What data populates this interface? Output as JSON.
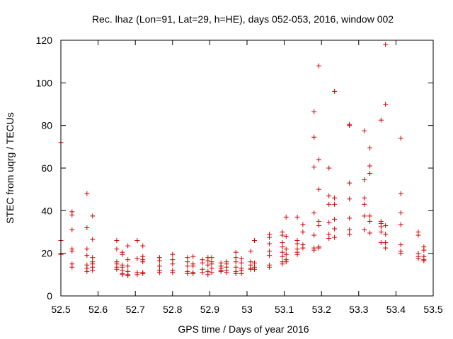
{
  "chart_data": {
    "type": "scatter",
    "title": "Rec. lhaz (Lon=91, Lat=29, h=HE), days 052-053, 2016, window 002",
    "xlabel": "GPS time / Days of year 2016",
    "ylabel": "STEC from uqrg / TECUs",
    "xlim": [
      52.5,
      53.5
    ],
    "ylim": [
      0,
      120
    ],
    "x_ticks": [
      "52.5",
      "52.6",
      "52.7",
      "52.8",
      "52.9",
      "53",
      "53.1",
      "53.2",
      "53.3",
      "53.4",
      "53.5"
    ],
    "y_ticks": [
      "0",
      "20",
      "40",
      "60",
      "80",
      "100",
      "120"
    ],
    "x_tick_values": [
      52.5,
      52.6,
      52.7,
      52.8,
      52.9,
      53.0,
      53.1,
      53.2,
      53.3,
      53.4,
      53.5
    ],
    "y_tick_values": [
      0,
      20,
      40,
      60,
      80,
      100,
      120
    ],
    "grid": false,
    "marker": "plus",
    "marker_color": "#d00000",
    "series": [
      {
        "points": [
          [
            52.5,
            72
          ],
          [
            52.5,
            26
          ],
          [
            52.5,
            20
          ],
          [
            52.5,
            19.5
          ],
          [
            52.53,
            39.5
          ],
          [
            52.53,
            38
          ],
          [
            52.53,
            31
          ],
          [
            52.53,
            22
          ],
          [
            52.53,
            21
          ],
          [
            52.53,
            15
          ],
          [
            52.53,
            13.5
          ],
          [
            52.57,
            48
          ],
          [
            52.57,
            32
          ],
          [
            52.57,
            22
          ],
          [
            52.57,
            19
          ],
          [
            52.57,
            14.5
          ],
          [
            52.57,
            13
          ],
          [
            52.57,
            11.5
          ],
          [
            52.585,
            37.5
          ],
          [
            52.585,
            26.5
          ],
          [
            52.585,
            18
          ],
          [
            52.585,
            16
          ],
          [
            52.585,
            15
          ],
          [
            52.585,
            13.5
          ],
          [
            52.585,
            12
          ],
          [
            52.65,
            26
          ],
          [
            52.65,
            22
          ],
          [
            52.65,
            16
          ],
          [
            52.65,
            15
          ],
          [
            52.65,
            13.5
          ],
          [
            52.65,
            12.5
          ],
          [
            52.665,
            20.5
          ],
          [
            52.665,
            19.5
          ],
          [
            52.665,
            14.5
          ],
          [
            52.665,
            13.5
          ],
          [
            52.665,
            12
          ],
          [
            52.665,
            10.5
          ],
          [
            52.665,
            10
          ],
          [
            52.68,
            23.5
          ],
          [
            52.68,
            17
          ],
          [
            52.68,
            14
          ],
          [
            52.68,
            11.5
          ],
          [
            52.68,
            10
          ],
          [
            52.68,
            9.5
          ],
          [
            52.705,
            26
          ],
          [
            52.705,
            17.5
          ],
          [
            52.705,
            11
          ],
          [
            52.705,
            10
          ],
          [
            52.72,
            23.5
          ],
          [
            52.72,
            18.5
          ],
          [
            52.72,
            17
          ],
          [
            52.72,
            16
          ],
          [
            52.72,
            11
          ],
          [
            52.72,
            10.5
          ],
          [
            52.765,
            18
          ],
          [
            52.765,
            16.5
          ],
          [
            52.765,
            14
          ],
          [
            52.765,
            12
          ],
          [
            52.765,
            11
          ],
          [
            52.8,
            19.5
          ],
          [
            52.8,
            17
          ],
          [
            52.8,
            15
          ],
          [
            52.8,
            12
          ],
          [
            52.8,
            11
          ],
          [
            52.84,
            18
          ],
          [
            52.84,
            16
          ],
          [
            52.84,
            14
          ],
          [
            52.84,
            11.5
          ],
          [
            52.84,
            10.5
          ],
          [
            52.855,
            18.5
          ],
          [
            52.855,
            15
          ],
          [
            52.855,
            14
          ],
          [
            52.855,
            11
          ],
          [
            52.855,
            10.5
          ],
          [
            52.88,
            17
          ],
          [
            52.88,
            15.5
          ],
          [
            52.88,
            12.5
          ],
          [
            52.88,
            11
          ],
          [
            52.895,
            18
          ],
          [
            52.895,
            16.5
          ],
          [
            52.895,
            14.5
          ],
          [
            52.895,
            11.5
          ],
          [
            52.895,
            10
          ],
          [
            52.905,
            18
          ],
          [
            52.905,
            16
          ],
          [
            52.905,
            15
          ],
          [
            52.905,
            13
          ],
          [
            52.905,
            11
          ],
          [
            52.93,
            15.5
          ],
          [
            52.93,
            14
          ],
          [
            52.93,
            13
          ],
          [
            52.93,
            12
          ],
          [
            52.93,
            11.5
          ],
          [
            52.945,
            16
          ],
          [
            52.945,
            15
          ],
          [
            52.945,
            13.5
          ],
          [
            52.945,
            12
          ],
          [
            52.945,
            11
          ],
          [
            52.97,
            20.5
          ],
          [
            52.97,
            18
          ],
          [
            52.97,
            16
          ],
          [
            52.97,
            13.5
          ],
          [
            52.97,
            11.5
          ],
          [
            52.97,
            10.5
          ],
          [
            52.985,
            17.5
          ],
          [
            52.985,
            15.5
          ],
          [
            52.985,
            13
          ],
          [
            52.985,
            12
          ],
          [
            52.985,
            10.5
          ],
          [
            53.01,
            21
          ],
          [
            53.01,
            16
          ],
          [
            53.01,
            14.5
          ],
          [
            53.01,
            13
          ],
          [
            53.01,
            12.5
          ],
          [
            53.02,
            26
          ],
          [
            53.02,
            15.5
          ],
          [
            53.02,
            13.5
          ],
          [
            53.02,
            12.5
          ],
          [
            53.06,
            29
          ],
          [
            53.06,
            27.5
          ],
          [
            53.06,
            24.5
          ],
          [
            53.06,
            21
          ],
          [
            53.06,
            19
          ],
          [
            53.06,
            14.5
          ],
          [
            53.06,
            13.5
          ],
          [
            53.095,
            30
          ],
          [
            53.095,
            28.5
          ],
          [
            53.095,
            25
          ],
          [
            53.095,
            23
          ],
          [
            53.095,
            20.5
          ],
          [
            53.095,
            18.5
          ],
          [
            53.095,
            16
          ],
          [
            53.095,
            15
          ],
          [
            53.105,
            37
          ],
          [
            53.105,
            28
          ],
          [
            53.105,
            22
          ],
          [
            53.105,
            19.5
          ],
          [
            53.105,
            17
          ],
          [
            53.105,
            16
          ],
          [
            53.135,
            37
          ],
          [
            53.135,
            26
          ],
          [
            53.135,
            24.5
          ],
          [
            53.135,
            22
          ],
          [
            53.135,
            20.5
          ],
          [
            53.135,
            19.5
          ],
          [
            53.15,
            33.5
          ],
          [
            53.15,
            30
          ],
          [
            53.15,
            24
          ],
          [
            53.15,
            22.5
          ],
          [
            53.18,
            86.5
          ],
          [
            53.18,
            74.5
          ],
          [
            53.18,
            60.5
          ],
          [
            53.18,
            39
          ],
          [
            53.18,
            28.5
          ],
          [
            53.18,
            22.5
          ],
          [
            53.18,
            21.5
          ],
          [
            53.193,
            108
          ],
          [
            53.193,
            64
          ],
          [
            53.193,
            50
          ],
          [
            53.193,
            35
          ],
          [
            53.193,
            33
          ],
          [
            53.193,
            23
          ],
          [
            53.193,
            22.5
          ],
          [
            53.22,
            60
          ],
          [
            53.22,
            47
          ],
          [
            53.22,
            43
          ],
          [
            53.22,
            34.5
          ],
          [
            53.22,
            29
          ],
          [
            53.22,
            27
          ],
          [
            53.235,
            96
          ],
          [
            53.235,
            46
          ],
          [
            53.235,
            43
          ],
          [
            53.235,
            36
          ],
          [
            53.235,
            31.5
          ],
          [
            53.235,
            27.5
          ],
          [
            53.275,
            80.5
          ],
          [
            53.275,
            80
          ],
          [
            53.275,
            53
          ],
          [
            53.275,
            45.5
          ],
          [
            53.275,
            36.5
          ],
          [
            53.275,
            31
          ],
          [
            53.275,
            29
          ],
          [
            53.315,
            77.5
          ],
          [
            53.315,
            54.5
          ],
          [
            53.315,
            46
          ],
          [
            53.315,
            43
          ],
          [
            53.315,
            37.5
          ],
          [
            53.315,
            31
          ],
          [
            53.33,
            69.5
          ],
          [
            53.33,
            61
          ],
          [
            53.33,
            57.5
          ],
          [
            53.33,
            37.5
          ],
          [
            53.33,
            35
          ],
          [
            53.33,
            29.5
          ],
          [
            53.36,
            82.5
          ],
          [
            53.36,
            35
          ],
          [
            53.36,
            34
          ],
          [
            53.36,
            32.5
          ],
          [
            53.36,
            30
          ],
          [
            53.36,
            25
          ],
          [
            53.372,
            118
          ],
          [
            53.372,
            90
          ],
          [
            53.372,
            33
          ],
          [
            53.372,
            29
          ],
          [
            53.372,
            25
          ],
          [
            53.372,
            22.5
          ],
          [
            53.413,
            74
          ],
          [
            53.413,
            48
          ],
          [
            53.413,
            39
          ],
          [
            53.413,
            33.5
          ],
          [
            53.413,
            24
          ],
          [
            53.413,
            21
          ],
          [
            53.413,
            20
          ],
          [
            53.46,
            30
          ],
          [
            53.46,
            28.5
          ],
          [
            53.46,
            20
          ],
          [
            53.46,
            18.5
          ],
          [
            53.46,
            17.5
          ],
          [
            53.475,
            23
          ],
          [
            53.475,
            21.5
          ],
          [
            53.475,
            18.5
          ],
          [
            53.475,
            17
          ],
          [
            53.475,
            16.5
          ]
        ]
      }
    ]
  }
}
